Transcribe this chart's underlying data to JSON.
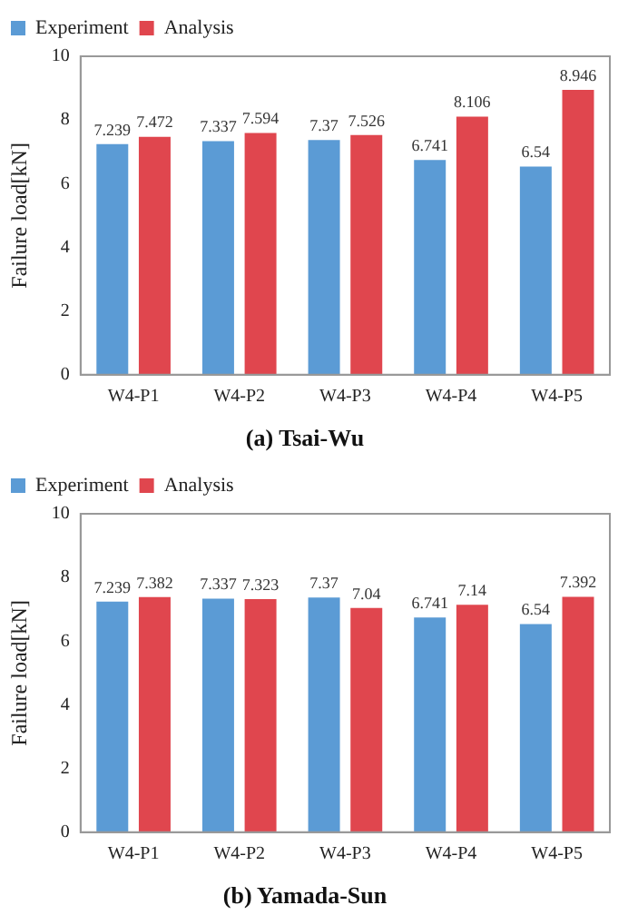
{
  "chart_data": [
    {
      "type": "bar",
      "title": "(a) Tsai-Wu",
      "ylabel": "Failure load[kN]",
      "categories": [
        "W4-P1",
        "W4-P2",
        "W4-P3",
        "W4-P4",
        "W4-P5"
      ],
      "series": [
        {
          "name": "Experiment",
          "color": "#5b9bd5",
          "values": [
            7.239,
            7.337,
            7.37,
            6.741,
            6.54
          ]
        },
        {
          "name": "Analysis",
          "color": "#e0464e",
          "values": [
            7.472,
            7.594,
            7.526,
            8.106,
            8.946
          ]
        }
      ],
      "ylim": [
        0,
        10
      ],
      "yticks": [
        0,
        2,
        4,
        6,
        8,
        10
      ],
      "grid": false,
      "legend": "top left",
      "data_labels": true
    },
    {
      "type": "bar",
      "title": "(b) Yamada-Sun",
      "ylabel": "Failure load[kN]",
      "categories": [
        "W4-P1",
        "W4-P2",
        "W4-P3",
        "W4-P4",
        "W4-P5"
      ],
      "series": [
        {
          "name": "Experiment",
          "color": "#5b9bd5",
          "values": [
            7.239,
            7.337,
            7.37,
            6.741,
            6.54
          ]
        },
        {
          "name": "Analysis",
          "color": "#e0464e",
          "values": [
            7.382,
            7.323,
            7.04,
            7.14,
            7.392
          ]
        }
      ],
      "ylim": [
        0,
        10
      ],
      "yticks": [
        0,
        2,
        4,
        6,
        8,
        10
      ],
      "grid": false,
      "legend": "top left",
      "data_labels": true
    }
  ]
}
